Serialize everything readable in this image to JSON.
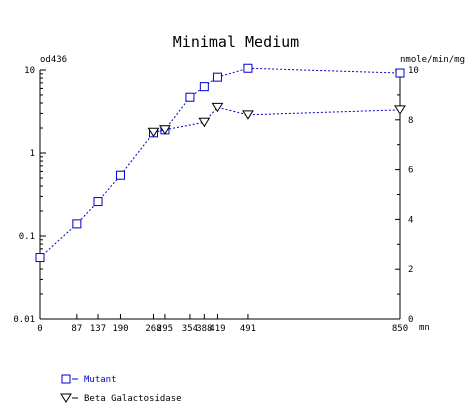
{
  "chart_data": {
    "type": "line",
    "title": "Minimal Medium",
    "ylabel_left": "od436",
    "ylabel_right": "nmole/min/mg",
    "xlabel": "mn",
    "left_axis": {
      "scale": "log",
      "ylim": [
        0.01,
        10
      ],
      "ticks": [
        "0.01",
        "0.1",
        "1",
        "10"
      ]
    },
    "right_axis": {
      "scale": "linear",
      "ylim": [
        0,
        10
      ],
      "ticks": [
        "0",
        "2",
        "4",
        "6",
        "8",
        "10"
      ]
    },
    "x_range": [
      0,
      850
    ],
    "x_ticks": [
      0,
      87,
      137,
      190,
      268,
      295,
      354,
      388,
      419,
      491,
      850
    ],
    "x_tick_labels": [
      "0",
      "87",
      "137",
      "190",
      "268",
      "295",
      "354",
      "388",
      "419",
      "491",
      "850"
    ],
    "series": [
      {
        "name": "Mutant",
        "axis": "left",
        "color": "#0000cc",
        "marker": "square",
        "x": [
          0,
          87,
          137,
          190,
          268,
          295,
          354,
          388,
          419,
          491,
          850
        ],
        "y": [
          0.055,
          0.14,
          0.26,
          0.54,
          1.75,
          1.9,
          4.7,
          6.3,
          8.2,
          10.5,
          9.2
        ]
      },
      {
        "name": "Beta Galactosidase",
        "axis": "right",
        "color": "#0000cc",
        "marker": "triangle-down",
        "x": [
          268,
          295,
          388,
          419,
          491,
          850
        ],
        "y": [
          7.5,
          7.6,
          7.9,
          8.5,
          8.2,
          8.4
        ]
      }
    ],
    "legend_position": "bottom-left"
  }
}
